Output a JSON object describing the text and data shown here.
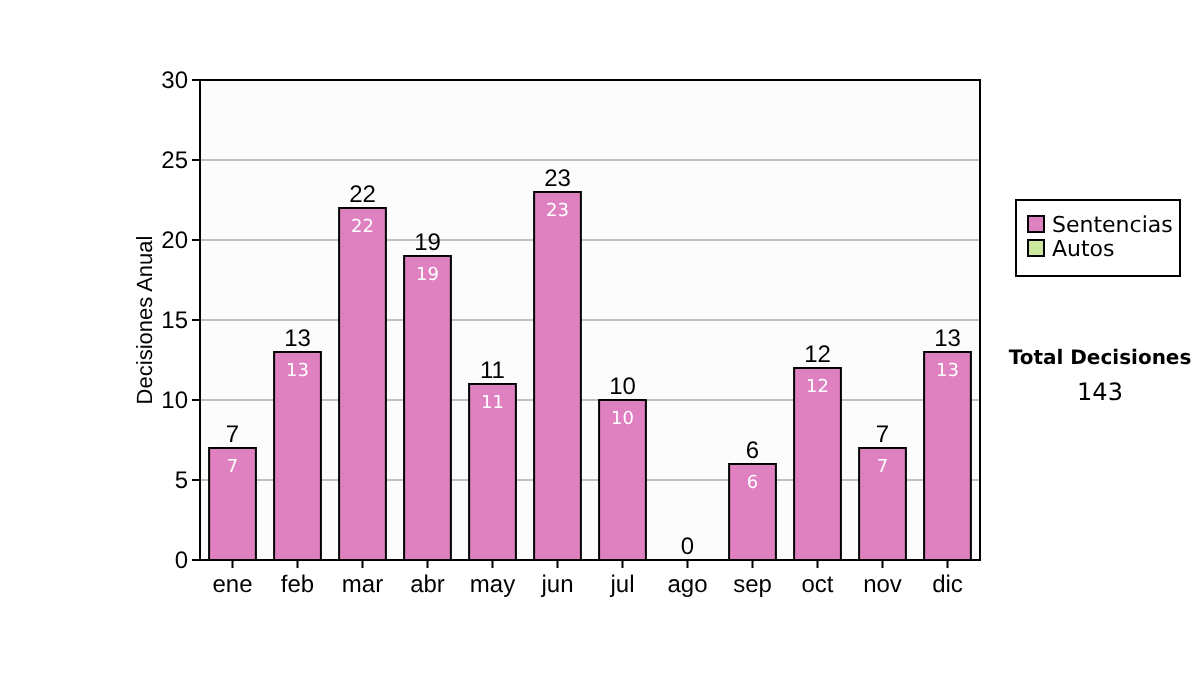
{
  "chart_data": {
    "type": "bar",
    "ylabel": "Decisiones Anual",
    "categories": [
      "ene",
      "feb",
      "mar",
      "abr",
      "may",
      "jun",
      "jul",
      "ago",
      "sep",
      "oct",
      "nov",
      "dic"
    ],
    "stacked": true,
    "series": [
      {
        "name": "Sentencias",
        "color": "#df80c0",
        "values": [
          7,
          13,
          22,
          19,
          11,
          23,
          10,
          0,
          6,
          12,
          7,
          13
        ],
        "value_labels": [
          "7",
          "13",
          "22",
          "19",
          "11",
          "23",
          "10",
          null,
          "6",
          "12",
          "7",
          "13"
        ]
      },
      {
        "name": "Autos",
        "color": "#cce8a0",
        "values": [
          0,
          0,
          0,
          0,
          0,
          0,
          0,
          0,
          0,
          0,
          0,
          0
        ]
      }
    ],
    "totals": [
      "7",
      "13",
      "22",
      "19",
      "11",
      "23",
      "10",
      "0",
      "6",
      "12",
      "7",
      "13"
    ],
    "ylim": [
      0,
      30
    ],
    "yticks": [
      0,
      5,
      10,
      15,
      20,
      25,
      30
    ],
    "grid": "y",
    "legend": "right",
    "annotations": [
      "Total Decisiones",
      "143"
    ]
  }
}
